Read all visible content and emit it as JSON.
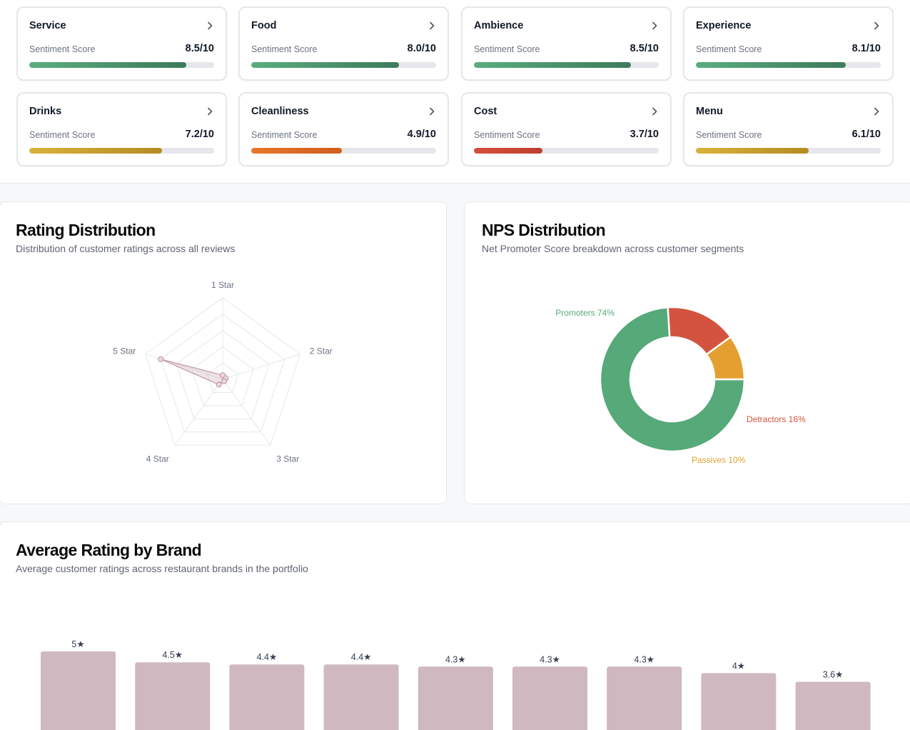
{
  "sentiment_cards": [
    {
      "title": "Service",
      "score_label": "Sentiment Score",
      "score": "8.5/10",
      "fraction": 0.85,
      "color_start": "#5aad7e",
      "color_end": "#3d7a5c"
    },
    {
      "title": "Food",
      "score_label": "Sentiment Score",
      "score": "8.0/10",
      "fraction": 0.8,
      "color_start": "#5aad7e",
      "color_end": "#3d7a5c"
    },
    {
      "title": "Ambience",
      "score_label": "Sentiment Score",
      "score": "8.5/10",
      "fraction": 0.85,
      "color_start": "#5aad7e",
      "color_end": "#3d7a5c"
    },
    {
      "title": "Experience",
      "score_label": "Sentiment Score",
      "score": "8.1/10",
      "fraction": 0.81,
      "color_start": "#5aad7e",
      "color_end": "#3d7a5c"
    },
    {
      "title": "Drinks",
      "score_label": "Sentiment Score",
      "score": "7.2/10",
      "fraction": 0.72,
      "color_start": "#d9b239",
      "color_end": "#b48a23"
    },
    {
      "title": "Cleanliness",
      "score_label": "Sentiment Score",
      "score": "4.9/10",
      "fraction": 0.49,
      "color_start": "#e8762a",
      "color_end": "#cf5d1e"
    },
    {
      "title": "Cost",
      "score_label": "Sentiment Score",
      "score": "3.7/10",
      "fraction": 0.37,
      "color_start": "#d74f3a",
      "color_end": "#bf3f2e"
    },
    {
      "title": "Menu",
      "score_label": "Sentiment Score",
      "score": "6.1/10",
      "fraction": 0.61,
      "color_start": "#d9b239",
      "color_end": "#b48a23"
    }
  ],
  "rating_distribution": {
    "title": "Rating Distribution",
    "subtitle": "Distribution of customer ratings across all reviews"
  },
  "nps_distribution": {
    "title": "NPS Distribution",
    "subtitle": "Net Promoter Score breakdown across customer segments"
  },
  "brand_ratings": {
    "title": "Average Rating by Brand",
    "subtitle": "Average customer ratings across restaurant brands in the portfolio"
  },
  "chart_data": [
    {
      "type": "radar",
      "axes": [
        "1 Star",
        "2 Star",
        "3 Star",
        "4 Star",
        "5 Star"
      ],
      "values": [
        0.05,
        0.04,
        0.03,
        0.08,
        0.8
      ],
      "rmax": 1,
      "grid_levels": 5,
      "color": "#c9a7b2"
    },
    {
      "type": "pie",
      "donut": true,
      "slices": [
        {
          "label": "Promoters 74%",
          "value": 74,
          "color": "#56a978"
        },
        {
          "label": "Detractors 16%",
          "value": 16,
          "color": "#d4533f"
        },
        {
          "label": "Passives 10%",
          "value": 10,
          "color": "#e3a030"
        }
      ]
    },
    {
      "type": "bar",
      "values": [
        5,
        4.5,
        4.4,
        4.4,
        4.3,
        4.3,
        4.3,
        4,
        3.6
      ],
      "labels": [
        "5★",
        "4.5★",
        "4.4★",
        "4.4★",
        "4.3★",
        "4.3★",
        "4.3★",
        "4★",
        "3.6★"
      ],
      "color": "#cfb8bf"
    }
  ]
}
